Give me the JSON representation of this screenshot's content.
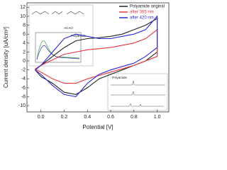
{
  "chart_data": {
    "type": "line",
    "x_label": "Potential [V]",
    "y_label": "Current density [uA/cm²]",
    "xlim": [
      -0.12,
      1.1
    ],
    "ylim": [
      -11.4,
      13
    ],
    "xticks": [
      {
        "value": 0,
        "label": "0.0"
      },
      0.2,
      0.4,
      0.6,
      0.8,
      {
        "value": 1,
        "label": "1.0"
      }
    ],
    "yticks": [
      -10,
      -8,
      -6,
      -4,
      -2,
      0,
      2,
      4,
      6,
      8,
      10,
      12
    ],
    "legend": "top-right",
    "annotations": [
      "ACAO",
      "Polyamide",
      "Polyamide"
    ],
    "series": [
      {
        "name": "Polyamide original",
        "color": "#222222",
        "x": [
          -0.05,
          0.0,
          0.1,
          0.2,
          0.3,
          0.4,
          0.5,
          0.6,
          0.7,
          0.8,
          0.9,
          1.0,
          1.0,
          0.9,
          0.8,
          0.7,
          0.6,
          0.5,
          0.4,
          0.3,
          0.2,
          0.1,
          0.0,
          -0.05
        ],
        "values": [
          -2,
          -1,
          1,
          3,
          4.5,
          5,
          5.2,
          5.5,
          6,
          7,
          8,
          9.5,
          2,
          0,
          -1,
          -2,
          -3,
          -4,
          -6,
          -7.5,
          -7,
          -5,
          -3.5,
          -2
        ]
      },
      {
        "name": "after 365 nm",
        "color": "#e8343c",
        "x": [
          -0.05,
          0.0,
          0.2,
          0.4,
          0.6,
          0.8,
          0.9,
          1.0,
          1.0,
          0.8,
          0.6,
          0.4,
          0.3,
          0.2,
          0.1,
          0.0,
          -0.05
        ],
        "values": [
          -1.8,
          -1,
          1.5,
          2.5,
          3,
          4,
          5,
          7,
          1,
          -1,
          -2.5,
          -4,
          -5,
          -5,
          -4,
          -2.5,
          -1.8
        ]
      },
      {
        "name": "after 420 nm",
        "color": "#2a2ad8",
        "x": [
          -0.05,
          0.0,
          0.1,
          0.2,
          0.3,
          0.4,
          0.5,
          0.6,
          0.7,
          0.8,
          0.9,
          1.0,
          1.0,
          0.9,
          0.8,
          0.6,
          0.5,
          0.4,
          0.3,
          0.2,
          0.1,
          0.0,
          -0.05
        ],
        "values": [
          -2,
          -1,
          2,
          5,
          6,
          5.5,
          5,
          5,
          5.5,
          6,
          7,
          10,
          3,
          1,
          -0.5,
          -2,
          -3,
          -5,
          -8,
          -7.5,
          -5.5,
          -3,
          -2
        ]
      }
    ]
  }
}
